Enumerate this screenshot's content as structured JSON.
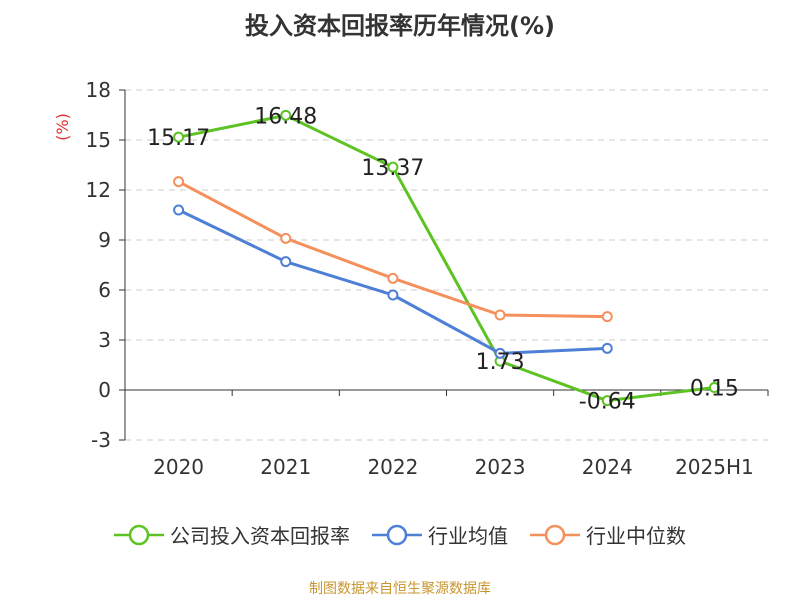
{
  "title": "投入资本回报率历年情况(%)",
  "source_text": "制图数据来自恒生聚源数据库",
  "chart_data": {
    "type": "line",
    "categories": [
      "2020",
      "2021",
      "2022",
      "2023",
      "2024",
      "2025H1"
    ],
    "ylabel": "(%)",
    "ylim": [
      -3,
      18
    ],
    "yticks": [
      -3,
      0,
      3,
      6,
      9,
      12,
      15,
      18
    ],
    "grid": true,
    "legend_position": "bottom",
    "series": [
      {
        "name": "公司投入资本回报率",
        "color": "#5cc323",
        "values": [
          15.17,
          16.48,
          13.37,
          1.73,
          -0.64,
          0.15
        ],
        "labels": [
          "15.17",
          "16.48",
          "13.37",
          "1.73",
          "-0.64",
          "0.15"
        ]
      },
      {
        "name": "行业均值",
        "color": "#4e7fd6",
        "values": [
          10.8,
          7.7,
          5.7,
          2.2,
          2.5,
          null
        ]
      },
      {
        "name": "行业中位数",
        "color": "#f4905c",
        "values": [
          12.5,
          9.1,
          6.7,
          4.5,
          4.4,
          null
        ]
      }
    ]
  }
}
